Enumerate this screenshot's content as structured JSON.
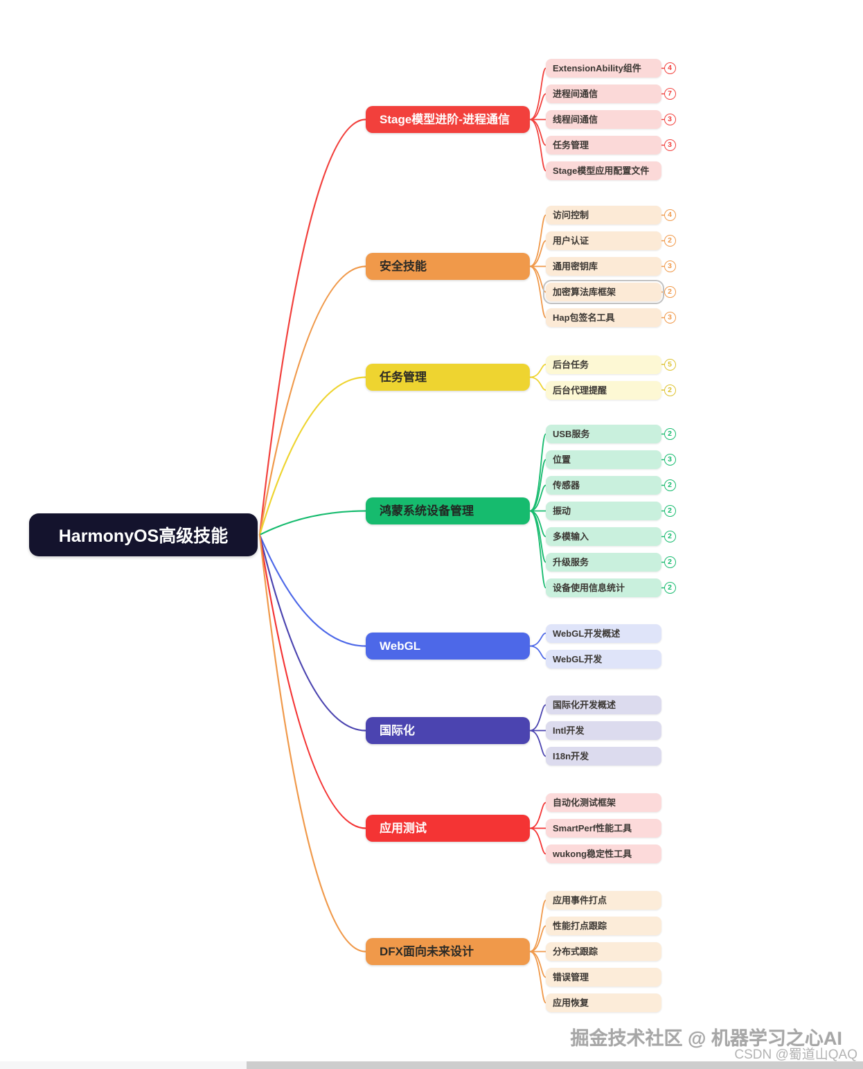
{
  "root": {
    "label": "HarmonyOS高级技能",
    "bg_color": "#14132d",
    "text_color": "#ffffff"
  },
  "branches": [
    {
      "label": "Stage模型进阶-进程通信",
      "color": "#f2403c",
      "text_color": "#ffffff",
      "child_bg": "#fbd9d8",
      "children": [
        {
          "label": "ExtensionAbility组件",
          "count": "4"
        },
        {
          "label": "进程间通信",
          "count": "7"
        },
        {
          "label": "线程间通信",
          "count": "3"
        },
        {
          "label": "任务管理",
          "count": "3"
        },
        {
          "label": "Stage模型应用配置文件"
        }
      ]
    },
    {
      "label": "安全技能",
      "color": "#f0994a",
      "text_color": "#2b2a26",
      "child_bg": "#fcead6",
      "children": [
        {
          "label": "访问控制",
          "count": "4"
        },
        {
          "label": "用户认证",
          "count": "2"
        },
        {
          "label": "通用密钥库",
          "count": "3"
        },
        {
          "label": "加密算法库框架",
          "count": "2",
          "selected": true
        },
        {
          "label": "Hap包签名工具",
          "count": "3"
        }
      ]
    },
    {
      "label": "任务管理",
      "color": "#eed430",
      "badge_color": "#ddc22e",
      "text_color": "#2b2a26",
      "child_bg": "#fdf8d4",
      "children": [
        {
          "label": "后台任务",
          "count": "5"
        },
        {
          "label": "后台代理提醒",
          "count": "2"
        }
      ]
    },
    {
      "label": "鸿蒙系统设备管理",
      "color": "#16bb6e",
      "text_color": "#222622",
      "child_bg": "#c9f0dd",
      "children": [
        {
          "label": "USB服务",
          "count": "2"
        },
        {
          "label": "位置",
          "count": "3"
        },
        {
          "label": "传感器",
          "count": "2"
        },
        {
          "label": "振动",
          "count": "2"
        },
        {
          "label": "多模输入",
          "count": "2"
        },
        {
          "label": "升级服务",
          "count": "2"
        },
        {
          "label": "设备使用信息统计",
          "count": "2"
        }
      ]
    },
    {
      "label": "WebGL",
      "color": "#4d68e8",
      "text_color": "#ffffff",
      "child_bg": "#dfe4f9",
      "children": [
        {
          "label": "WebGL开发概述"
        },
        {
          "label": "WebGL开发"
        }
      ]
    },
    {
      "label": "国际化",
      "color": "#4b44b0",
      "text_color": "#ffffff",
      "child_bg": "#dcdbee",
      "children": [
        {
          "label": "国际化开发概述"
        },
        {
          "label": "Intl开发"
        },
        {
          "label": "I18n开发"
        }
      ]
    },
    {
      "label": "应用测试",
      "color": "#f43434",
      "text_color": "#ffffff",
      "child_bg": "#fcdada",
      "children": [
        {
          "label": "自动化测试框架"
        },
        {
          "label": "SmartPerf性能工具"
        },
        {
          "label": "wukong稳定性工具"
        }
      ]
    },
    {
      "label": "DFX面向未来设计",
      "color": "#f0994a",
      "text_color": "#2b2a26",
      "child_bg": "#fcecd9",
      "children": [
        {
          "label": "应用事件打点"
        },
        {
          "label": "性能打点跟踪"
        },
        {
          "label": "分布式跟踪"
        },
        {
          "label": "错误管理"
        },
        {
          "label": "应用恢复"
        }
      ]
    }
  ],
  "watermarks": {
    "line1": "掘金技术社区 @ 机器学习之心AI",
    "line2": "CSDN @蜀道山QAQ"
  }
}
